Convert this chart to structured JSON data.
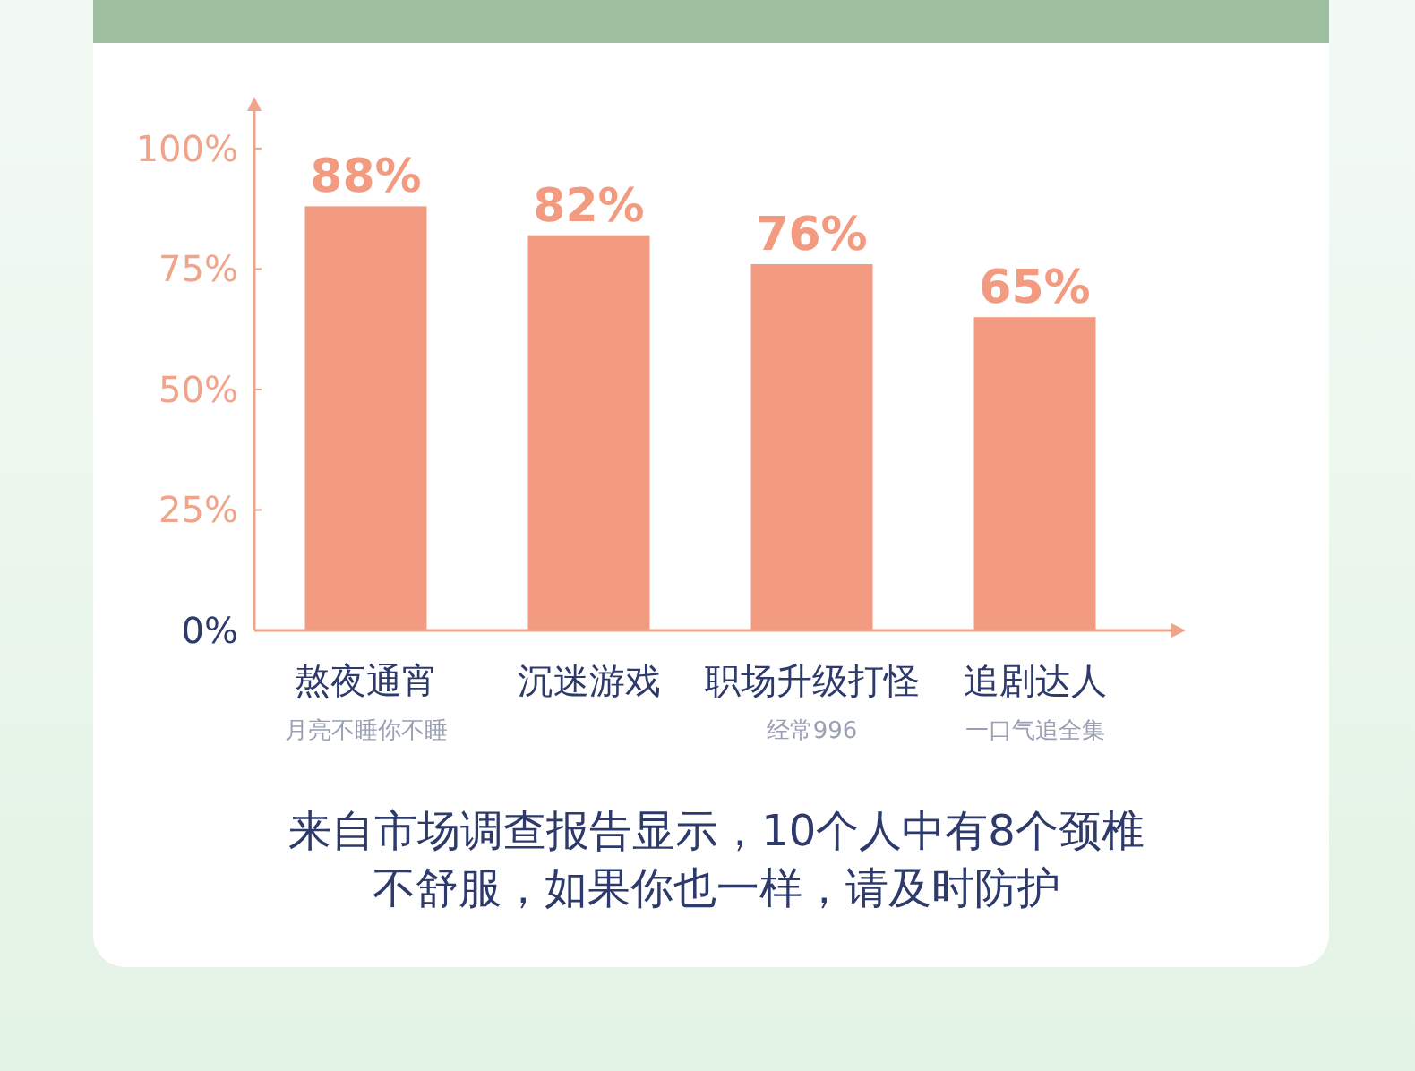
{
  "chart_data": {
    "type": "bar",
    "categories": [
      "熬夜通宵",
      "沉迷游戏",
      "职场升级打怪",
      "追剧达人"
    ],
    "values": [
      88,
      82,
      76,
      65
    ],
    "color": "#f29b80",
    "value_labels": [
      "88%",
      "82%",
      "76%",
      "65%"
    ],
    "ylim": [
      0,
      110
    ],
    "yticks": [
      {
        "value": 0,
        "label": "0%"
      },
      {
        "value": 25,
        "label": "25%"
      },
      {
        "value": 50,
        "label": "50%"
      },
      {
        "value": 75,
        "label": "75%"
      },
      {
        "value": 100,
        "label": "100%"
      }
    ],
    "grid": false,
    "annotations": [
      "月亮不睡你不睡",
      "经常996",
      "一口气追全集",
      "来自市场调查报告显示，10个人中有8个颈椎不舒服，如果你也一样，请及时防护"
    ]
  }
}
